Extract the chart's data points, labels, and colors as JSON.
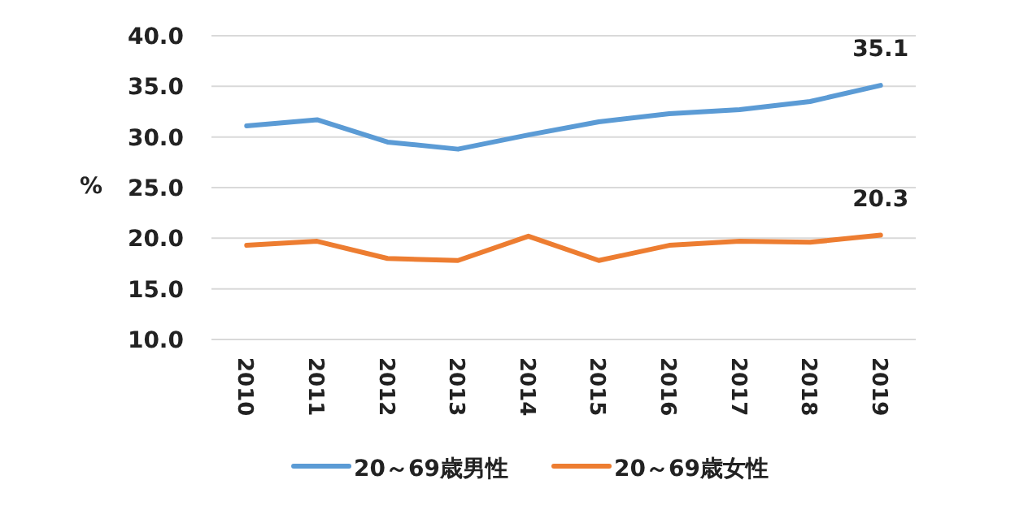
{
  "chart_data": {
    "type": "line",
    "ylabel": "%",
    "categories": [
      "2010",
      "2011",
      "2012",
      "2013",
      "2014",
      "2015",
      "2016",
      "2017",
      "2018",
      "2019"
    ],
    "series": [
      {
        "name": "20～69歳男性",
        "color": "#5b9bd5",
        "values": [
          31.1,
          31.7,
          29.5,
          28.8,
          30.2,
          31.5,
          32.3,
          32.7,
          33.5,
          35.1
        ],
        "value_labels": [
          null,
          null,
          null,
          null,
          null,
          null,
          null,
          null,
          null,
          "35.1"
        ]
      },
      {
        "name": "20～69歳女性",
        "color": "#ed7d31",
        "values": [
          19.3,
          19.7,
          18.0,
          17.8,
          20.2,
          17.8,
          19.3,
          19.7,
          19.6,
          20.3
        ],
        "value_labels": [
          null,
          null,
          null,
          null,
          null,
          null,
          null,
          null,
          null,
          "20.3"
        ]
      }
    ],
    "ylim": [
      10,
      40
    ],
    "yticks": [
      {
        "value": 10,
        "label": "10.0"
      },
      {
        "value": 15,
        "label": "15.0"
      },
      {
        "value": 20,
        "label": "20.0"
      },
      {
        "value": 25,
        "label": "25.0"
      },
      {
        "value": 30,
        "label": "30.0"
      },
      {
        "value": 35,
        "label": "35.0"
      },
      {
        "value": 40,
        "label": "40.0"
      }
    ],
    "grid": "y",
    "legend": "bottom",
    "marker": "none",
    "line_style": "solid"
  }
}
